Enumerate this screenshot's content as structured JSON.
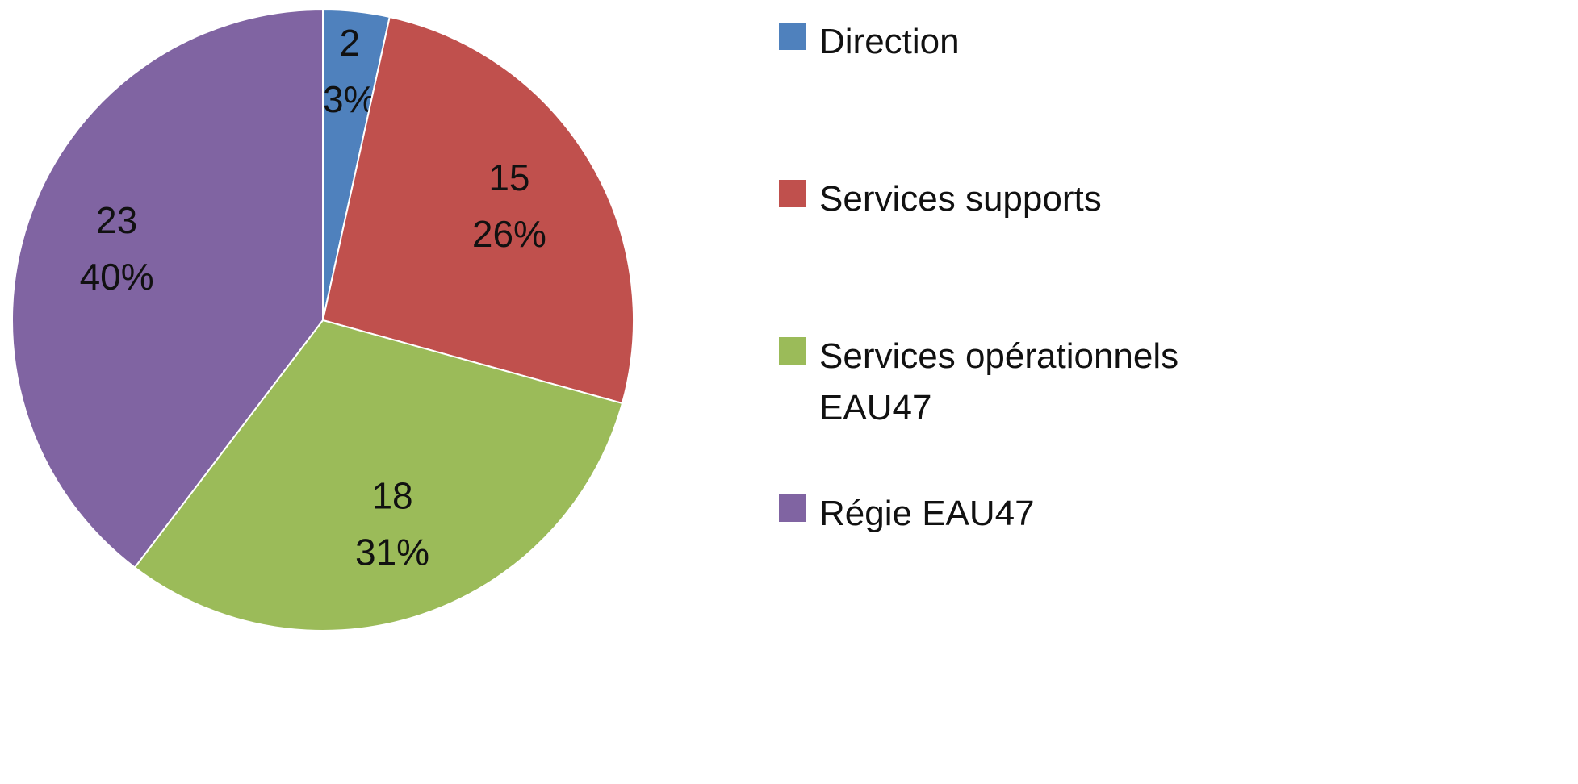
{
  "chart_data": {
    "type": "pie",
    "categories": [
      "Direction",
      "Services supports",
      "Services opérationnels EAU47",
      "Régie EAU47"
    ],
    "values": [
      2,
      15,
      18,
      23
    ],
    "percent_labels": [
      "3%",
      "26%",
      "31%",
      "40%"
    ],
    "colors": [
      "#4f81bd",
      "#c0504d",
      "#9bbb59",
      "#8064a2"
    ],
    "legend": "right"
  }
}
